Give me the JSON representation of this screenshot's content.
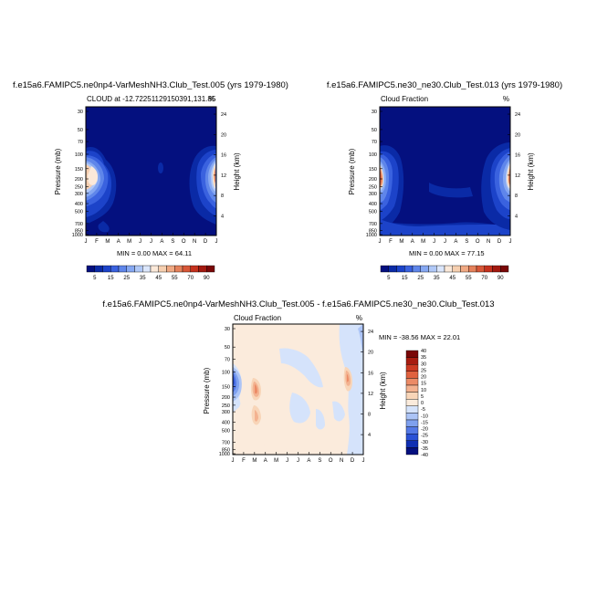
{
  "colors": {
    "frame": "#000000",
    "abs_scale": [
      "#04107f",
      "#0a2aa6",
      "#1c43c9",
      "#3a62df",
      "#5f86ea",
      "#86a8f2",
      "#b0c8f7",
      "#dbe6fb",
      "#fbe9d9",
      "#f6cfb0",
      "#f0a983",
      "#e5815b",
      "#d85738",
      "#c5321e",
      "#a3190f",
      "#7a0707"
    ],
    "diff_scale": [
      "#04107f",
      "#0f2fb3",
      "#2b52d6",
      "#5479e6",
      "#7fa1ef",
      "#acc4f6",
      "#d5e3fb",
      "#fbebdc",
      "#f8d5b8",
      "#f3b290",
      "#ec8b66",
      "#e0623f",
      "#cc3a22",
      "#a81c10",
      "#7a0707"
    ]
  },
  "chart_data": [
    {
      "type": "filled-contour",
      "title": "f.e15a6.FAMIPC5.ne0np4-VarMeshNH3.Club_Test.005 (yrs 1979-1980)",
      "subtitle_left": "CLOUD at -12.72251129150391,131.85",
      "subtitle_right": "%",
      "ylabel": "Pressure (mb)",
      "ylabel_right": "Height (km)",
      "x_ticks": [
        "J",
        "F",
        "M",
        "A",
        "M",
        "J",
        "J",
        "A",
        "S",
        "O",
        "N",
        "D",
        "J"
      ],
      "y_ticks": [
        "30",
        "50",
        "70",
        "100",
        "150",
        "200",
        "250",
        "300",
        "400",
        "500",
        "700",
        "850",
        "1000"
      ],
      "y_ticks_right": [
        "24",
        "20",
        "16",
        "12",
        "8",
        "4"
      ],
      "min_max": "MIN =   0.00 MAX =  64.11",
      "colorbar_labels": [
        "5",
        "15",
        "25",
        "35",
        "45",
        "55",
        "70",
        "90"
      ]
    },
    {
      "type": "filled-contour",
      "title": "f.e15a6.FAMIPC5.ne30_ne30.Club_Test.013 (yrs 1979-1980)",
      "subtitle_left": "Cloud Fraction",
      "subtitle_right": "%",
      "ylabel": "Pressure (mb)",
      "ylabel_right": "Height (km)",
      "x_ticks": [
        "J",
        "F",
        "M",
        "A",
        "M",
        "J",
        "J",
        "A",
        "S",
        "O",
        "N",
        "D",
        "J"
      ],
      "y_ticks": [
        "30",
        "50",
        "70",
        "100",
        "150",
        "200",
        "250",
        "300",
        "400",
        "500",
        "700",
        "850",
        "1000"
      ],
      "y_ticks_right": [
        "24",
        "20",
        "16",
        "12",
        "8",
        "4"
      ],
      "min_max": "MIN =   0.00 MAX =  77.15",
      "colorbar_labels": [
        "5",
        "15",
        "25",
        "35",
        "45",
        "55",
        "70",
        "90"
      ]
    },
    {
      "type": "filled-contour",
      "title": "f.e15a6.FAMIPC5.ne0np4-VarMeshNH3.Club_Test.005 - f.e15a6.FAMIPC5.ne30_ne30.Club_Test.013",
      "subtitle_left": "Cloud Fraction",
      "subtitle_right": "%",
      "ylabel": "Pressure (mb)",
      "ylabel_right": "Height (km)",
      "x_ticks": [
        "J",
        "F",
        "M",
        "A",
        "M",
        "J",
        "J",
        "A",
        "S",
        "O",
        "N",
        "D",
        "J"
      ],
      "y_ticks": [
        "30",
        "50",
        "70",
        "100",
        "150",
        "200",
        "250",
        "300",
        "400",
        "500",
        "700",
        "850",
        "1000"
      ],
      "y_ticks_right": [
        "24",
        "20",
        "16",
        "12",
        "8",
        "4"
      ],
      "min_max": "MIN = -38.56 MAX =  22.01",
      "colorbar_labels": [
        "40",
        "35",
        "30",
        "25",
        "20",
        "15",
        "10",
        "5",
        "0",
        "-5",
        "-10",
        "-15",
        "-20",
        "-25",
        "-30",
        "-35",
        "-40"
      ]
    }
  ]
}
